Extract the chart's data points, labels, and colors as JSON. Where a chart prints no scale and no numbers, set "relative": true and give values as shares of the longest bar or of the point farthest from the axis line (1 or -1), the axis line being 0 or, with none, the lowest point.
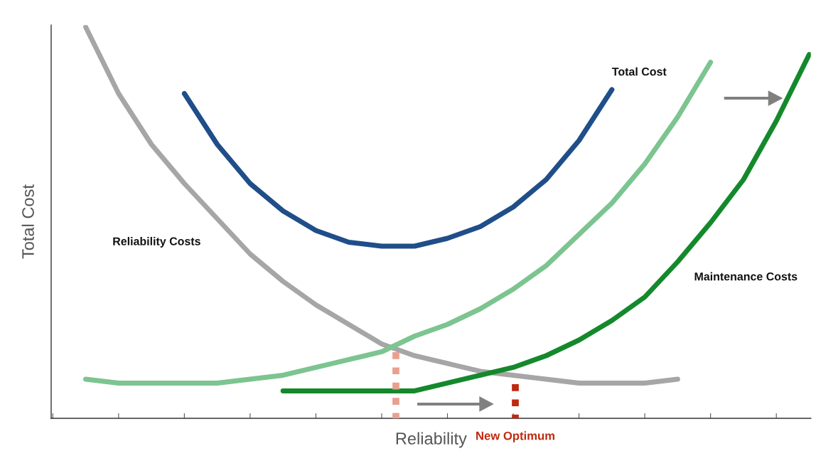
{
  "chart_data": {
    "type": "line",
    "relative": true,
    "xlabel": "Reliability",
    "ylabel": "Total Cost",
    "tick_labels": false,
    "grid": false,
    "legend": false,
    "line_style": "solid",
    "marker": "none",
    "categories": [
      null,
      null,
      null,
      null,
      null,
      null,
      null,
      null,
      null,
      null,
      null,
      null,
      null,
      null,
      null,
      null,
      null,
      null,
      null,
      null,
      null,
      null,
      null,
      null
    ],
    "series": [
      {
        "name": "Total Cost",
        "color": "#1f4e89",
        "values": [
          null,
          null,
          null,
          null,
          0.83,
          0.7,
          0.6,
          0.53,
          0.48,
          0.45,
          0.44,
          0.44,
          0.46,
          0.49,
          0.54,
          0.61,
          0.71,
          0.84,
          null,
          null,
          null,
          null,
          null,
          null
        ]
      },
      {
        "name": "Reliability Costs",
        "color": "#a6a6a6",
        "values": [
          null,
          1.0,
          0.83,
          0.7,
          0.6,
          0.51,
          0.42,
          0.35,
          0.29,
          0.24,
          0.19,
          0.16,
          0.14,
          0.12,
          0.11,
          0.1,
          0.09,
          0.09,
          0.09,
          0.1,
          null,
          null,
          null,
          null
        ]
      },
      {
        "color": "#7cc490",
        "values": [
          null,
          0.1,
          0.09,
          0.09,
          0.09,
          0.09,
          0.1,
          0.11,
          0.13,
          0.15,
          0.17,
          0.21,
          0.24,
          0.28,
          0.33,
          0.39,
          0.47,
          0.55,
          0.65,
          0.77,
          0.91,
          null,
          null,
          null
        ]
      },
      {
        "name": "Maintenance Costs",
        "color": "#14892c",
        "values": [
          null,
          null,
          null,
          null,
          null,
          null,
          null,
          0.07,
          0.07,
          0.07,
          0.07,
          0.07,
          0.09,
          0.11,
          0.13,
          0.16,
          0.2,
          0.25,
          0.31,
          0.4,
          0.5,
          0.61,
          0.76,
          0.93
        ]
      }
    ],
    "annotations": [
      "New Optimum"
    ]
  }
}
